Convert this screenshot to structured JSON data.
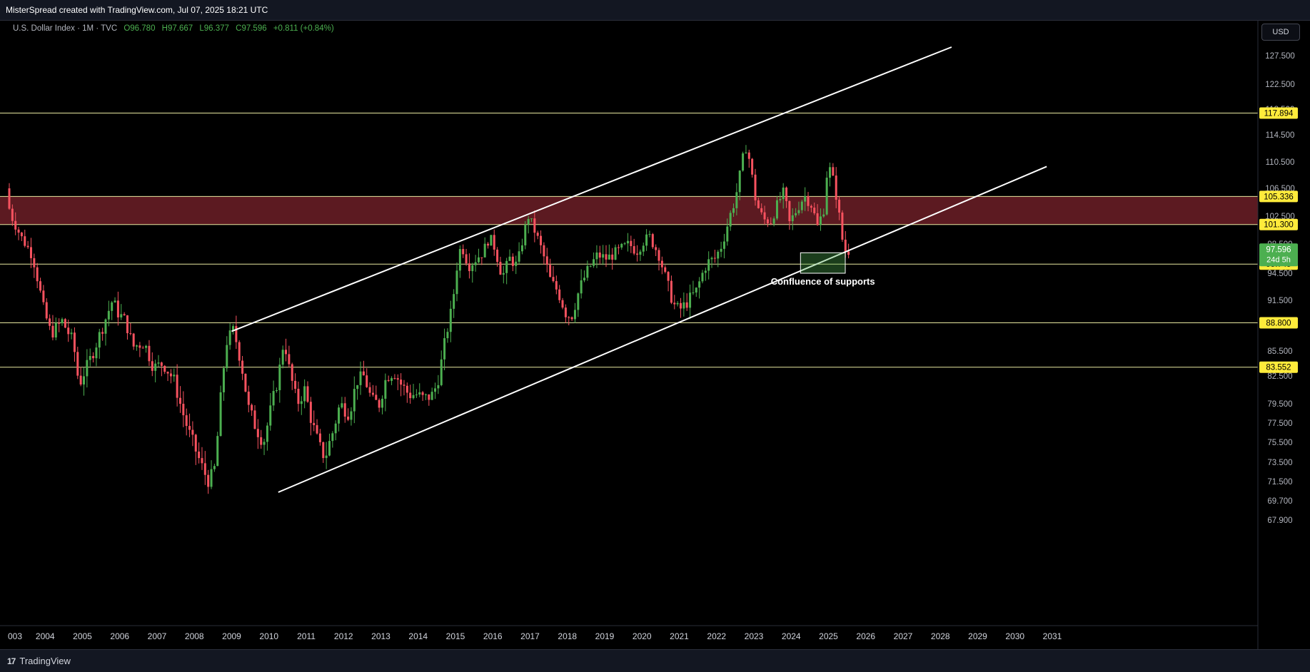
{
  "header": {
    "text": "MisterSpread created with TradingView.com, Jul 07, 2025 18:21 UTC"
  },
  "legend": {
    "symbol": "U.S. Dollar Index · 1M · TVC",
    "open": "O96.780",
    "high": "H97.667",
    "low": "L96.377",
    "close": "C97.596",
    "change": "+0.811 (+0.84%)"
  },
  "currency_button": "USD",
  "footer": {
    "brand": "TradingView",
    "brand_mark": "17"
  },
  "colors": {
    "background": "#000000",
    "up": "#4caf50",
    "down": "#f7525f",
    "level_line": "#e8e8a0",
    "zone": "#5c1a21",
    "trend": "#ffffff",
    "price_label_bg": "#ffeb3b",
    "last_price_bg": "#4caf50"
  },
  "annotation": {
    "text": "Confluence of supports"
  },
  "chart_data": {
    "type": "candlestick",
    "title": "U.S. Dollar Index · 1M · TVC",
    "x_axis": {
      "start_year": 2003,
      "end_year": 2031,
      "tick_labels": [
        "003",
        "2004",
        "2005",
        "2006",
        "2007",
        "2008",
        "2009",
        "2010",
        "2011",
        "2012",
        "2013",
        "2014",
        "2015",
        "2016",
        "2017",
        "2018",
        "2019",
        "2020",
        "2021",
        "2022",
        "2023",
        "2024",
        "2025",
        "2026",
        "2027",
        "2028",
        "2029",
        "2030",
        "2031"
      ]
    },
    "y_axis": {
      "ticks": [
        "127.500",
        "122.500",
        "118.500",
        "114.500",
        "110.500",
        "106.500",
        "102.500",
        "98.500",
        "94.500",
        "91.500",
        "88.500",
        "85.500",
        "82.500",
        "79.500",
        "77.500",
        "75.500",
        "73.500",
        "71.500",
        "69.700",
        "67.900"
      ],
      "tick_values": [
        127.5,
        122.5,
        118.5,
        114.5,
        110.5,
        106.5,
        102.5,
        98.5,
        94.5,
        91.5,
        88.5,
        85.5,
        82.5,
        79.5,
        77.5,
        75.5,
        73.5,
        71.5,
        69.7,
        67.9
      ]
    },
    "horizontal_levels": [
      {
        "value": 117.894,
        "label": "117.894"
      },
      {
        "value": 105.336,
        "label": "105.336"
      },
      {
        "value": 101.3,
        "label": "101.300"
      },
      {
        "value": 95.745,
        "label": "95.745"
      },
      {
        "value": 88.8,
        "label": "88.800"
      },
      {
        "value": 83.552,
        "label": "83.552"
      }
    ],
    "resistance_zone": {
      "from": 101.3,
      "to": 105.336
    },
    "support_box": {
      "x_from": 2024.25,
      "x_to": 2025.45,
      "y_from": 97.3,
      "y_to": 94.5
    },
    "last_price": {
      "value": 97.596,
      "label": "97.596",
      "countdown": "24d 5h"
    },
    "trendlines": [
      {
        "name": "upper channel",
        "points": [
          [
            2009.0,
            87.8
          ],
          [
            2028.3,
            129.0
          ]
        ]
      },
      {
        "name": "lower channel",
        "points": [
          [
            2010.25,
            70.5
          ],
          [
            2030.85,
            109.8
          ]
        ]
      }
    ],
    "price_path": [
      [
        2003.0,
        106.5
      ],
      [
        2003.1,
        103.0
      ],
      [
        2003.4,
        99.5
      ],
      [
        2003.7,
        97.0
      ],
      [
        2004.0,
        90.5
      ],
      [
        2004.2,
        87.5
      ],
      [
        2004.5,
        89.0
      ],
      [
        2004.8,
        86.5
      ],
      [
        2004.95,
        81.5
      ],
      [
        2005.1,
        83.0
      ],
      [
        2005.3,
        85.0
      ],
      [
        2005.6,
        88.5
      ],
      [
        2005.85,
        91.5
      ],
      [
        2006.0,
        90.0
      ],
      [
        2006.2,
        89.0
      ],
      [
        2006.4,
        86.0
      ],
      [
        2006.7,
        86.5
      ],
      [
        2006.95,
        83.5
      ],
      [
        2007.2,
        84.0
      ],
      [
        2007.5,
        82.0
      ],
      [
        2007.7,
        79.0
      ],
      [
        2007.9,
        76.5
      ],
      [
        2008.1,
        74.5
      ],
      [
        2008.3,
        72.5
      ],
      [
        2008.45,
        71.5
      ],
      [
        2008.6,
        73.0
      ],
      [
        2008.75,
        80.0
      ],
      [
        2008.9,
        86.5
      ],
      [
        2009.1,
        88.0
      ],
      [
        2009.3,
        84.0
      ],
      [
        2009.5,
        79.0
      ],
      [
        2009.7,
        77.0
      ],
      [
        2009.9,
        75.5
      ],
      [
        2010.1,
        79.0
      ],
      [
        2010.3,
        82.5
      ],
      [
        2010.45,
        87.0
      ],
      [
        2010.6,
        83.0
      ],
      [
        2010.8,
        79.5
      ],
      [
        2011.0,
        81.0
      ],
      [
        2011.2,
        77.5
      ],
      [
        2011.4,
        75.0
      ],
      [
        2011.55,
        74.0
      ],
      [
        2011.75,
        76.5
      ],
      [
        2011.95,
        79.5
      ],
      [
        2012.2,
        78.5
      ],
      [
        2012.4,
        82.0
      ],
      [
        2012.6,
        82.5
      ],
      [
        2012.8,
        79.8
      ],
      [
        2013.0,
        79.5
      ],
      [
        2013.2,
        82.5
      ],
      [
        2013.4,
        83.0
      ],
      [
        2013.6,
        81.5
      ],
      [
        2013.8,
        80.5
      ],
      [
        2014.0,
        80.5
      ],
      [
        2014.2,
        80.0
      ],
      [
        2014.45,
        80.5
      ],
      [
        2014.6,
        82.5
      ],
      [
        2014.8,
        87.5
      ],
      [
        2014.95,
        90.5
      ],
      [
        2015.1,
        96.0
      ],
      [
        2015.2,
        98.5
      ],
      [
        2015.4,
        95.5
      ],
      [
        2015.6,
        96.5
      ],
      [
        2015.8,
        97.5
      ],
      [
        2015.95,
        99.5
      ],
      [
        2016.1,
        98.0
      ],
      [
        2016.3,
        94.0
      ],
      [
        2016.5,
        96.5
      ],
      [
        2016.7,
        95.5
      ],
      [
        2016.9,
        100.5
      ],
      [
        2017.0,
        102.5
      ],
      [
        2017.2,
        100.0
      ],
      [
        2017.4,
        97.0
      ],
      [
        2017.6,
        93.5
      ],
      [
        2017.8,
        92.5
      ],
      [
        2018.0,
        90.0
      ],
      [
        2018.15,
        89.5
      ],
      [
        2018.35,
        92.5
      ],
      [
        2018.6,
        95.0
      ],
      [
        2018.85,
        97.0
      ],
      [
        2019.1,
        96.5
      ],
      [
        2019.4,
        97.5
      ],
      [
        2019.7,
        98.5
      ],
      [
        2019.9,
        97.5
      ],
      [
        2020.1,
        99.0
      ],
      [
        2020.25,
        99.5
      ],
      [
        2020.5,
        97.0
      ],
      [
        2020.7,
        93.5
      ],
      [
        2020.95,
        90.5
      ],
      [
        2021.1,
        90.5
      ],
      [
        2021.3,
        91.5
      ],
      [
        2021.5,
        92.5
      ],
      [
        2021.8,
        96.0
      ],
      [
        2022.0,
        96.5
      ],
      [
        2022.2,
        98.5
      ],
      [
        2022.4,
        102.5
      ],
      [
        2022.55,
        105.0
      ],
      [
        2022.75,
        111.0
      ],
      [
        2022.85,
        113.0
      ],
      [
        2022.95,
        110.0
      ],
      [
        2023.1,
        104.5
      ],
      [
        2023.3,
        102.0
      ],
      [
        2023.5,
        101.8
      ],
      [
        2023.7,
        104.5
      ],
      [
        2023.85,
        106.0
      ],
      [
        2024.0,
        101.5
      ],
      [
        2024.2,
        103.5
      ],
      [
        2024.4,
        105.5
      ],
      [
        2024.6,
        104.0
      ],
      [
        2024.75,
        101.0
      ],
      [
        2024.95,
        104.0
      ],
      [
        2025.0,
        108.5
      ],
      [
        2025.1,
        109.5
      ],
      [
        2025.2,
        107.0
      ],
      [
        2025.3,
        104.0
      ],
      [
        2025.4,
        99.5
      ],
      [
        2025.5,
        97.6
      ]
    ]
  }
}
